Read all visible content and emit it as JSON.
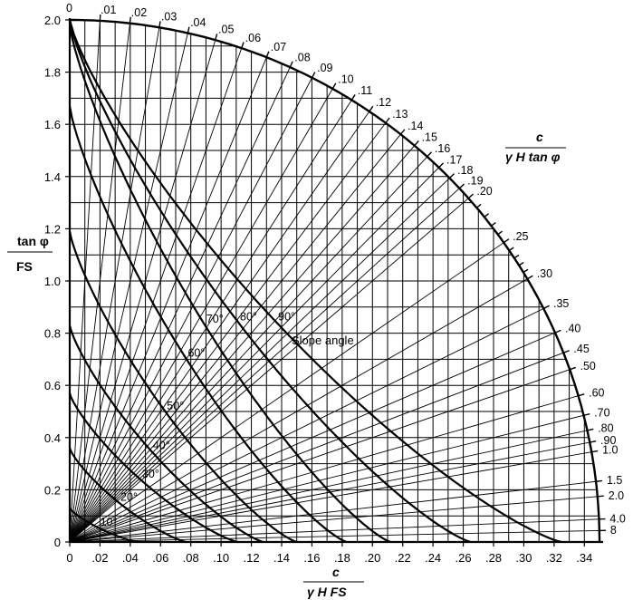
{
  "chart_data": {
    "type": "line",
    "title": "",
    "x_axis": {
      "range": [
        0,
        0.35
      ],
      "ticks": [
        "0",
        ".02",
        ".04",
        ".06",
        ".08",
        ".10",
        ".12",
        ".14",
        ".16",
        ".18",
        ".20",
        ".22",
        ".24",
        ".26",
        ".28",
        ".30",
        ".32",
        ".34"
      ],
      "label_top": "c",
      "label_bottom": "γ H FS"
    },
    "y_axis": {
      "range": [
        0,
        2.0
      ],
      "ticks": [
        "0",
        "0.2",
        "0.4",
        "0.6",
        "0.8",
        "1.0",
        "1.2",
        "1.4",
        "1.6",
        "1.8",
        "2.0"
      ],
      "label_top": "tan φ",
      "label_bottom": "FS"
    },
    "ratio_scale": {
      "label_top": "c",
      "label_bottom": "γ H tan φ",
      "labels": [
        "0",
        ".01",
        ".02",
        ".03",
        ".04",
        ".05",
        ".06",
        ".07",
        ".08",
        ".09",
        ".10",
        ".11",
        ".12",
        ".13",
        ".14",
        ".15",
        ".16",
        ".17",
        ".18",
        ".19",
        ".20",
        ".25",
        ".30",
        ".35",
        ".40",
        ".45",
        ".50",
        ".60",
        ".70",
        ".80",
        ".90",
        "1.0",
        "1.5",
        "2.0",
        "4.0",
        "8"
      ],
      "values": [
        0,
        0.01,
        0.02,
        0.03,
        0.04,
        0.05,
        0.06,
        0.07,
        0.08,
        0.09,
        0.1,
        0.11,
        0.12,
        0.13,
        0.14,
        0.15,
        0.16,
        0.17,
        0.18,
        0.19,
        0.2,
        0.25,
        0.3,
        0.35,
        0.4,
        0.45,
        0.5,
        0.6,
        0.7,
        0.8,
        0.9,
        1.0,
        1.5,
        2.0,
        4.0,
        8.0
      ],
      "minor_values": [
        0.21,
        0.22,
        0.23,
        0.24,
        0.26,
        0.27,
        0.28,
        0.29
      ]
    },
    "slope_angle_label": "Slope angle",
    "series": [
      {
        "name": "10°",
        "x_intercept": 0.045,
        "y_intercept": 0.13
      },
      {
        "name": "20°",
        "x_intercept": 0.077,
        "y_intercept": 0.36
      },
      {
        "name": "30°",
        "x_intercept": 0.111,
        "y_intercept": 0.57
      },
      {
        "name": "40°",
        "x_intercept": 0.128,
        "y_intercept": 0.83
      },
      {
        "name": "50°",
        "x_intercept": 0.15,
        "y_intercept": 1.19
      },
      {
        "name": "60°",
        "x_intercept": 0.183,
        "y_intercept": 1.67
      },
      {
        "name": "70°",
        "x_intercept": 0.212,
        "y_intercept": 1.98
      },
      {
        "name": "80°",
        "x_intercept": 0.265,
        "y_intercept": 2.0
      },
      {
        "name": "90°",
        "x_intercept": 0.325,
        "y_intercept": 2.0
      }
    ]
  }
}
